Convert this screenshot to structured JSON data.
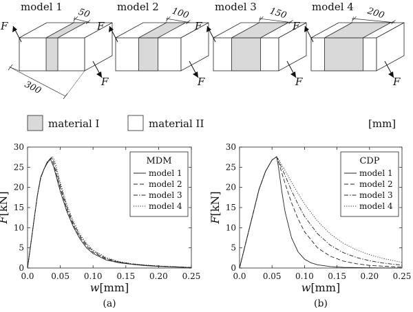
{
  "models": [
    {
      "label": "model 1",
      "dim": "50",
      "length": "300"
    },
    {
      "label": "model 2",
      "dim": "100"
    },
    {
      "label": "model 3",
      "dim": "150"
    },
    {
      "label": "model 4",
      "dim": "200"
    }
  ],
  "force_label": "F",
  "legend_materials": [
    {
      "label": "material I",
      "fill": "#d9d9d9"
    },
    {
      "label": "material II",
      "fill": "#ffffff"
    }
  ],
  "unit_label": "[mm]",
  "chart_data": [
    {
      "type": "line",
      "panel_label": "(a)",
      "legend_title": "MDM",
      "xlabel_var": "w",
      "xlabel_unit": "[mm]",
      "ylabel_var": "F",
      "ylabel_unit": "[kN]",
      "xlim": [
        0,
        0.25
      ],
      "ylim": [
        0,
        30
      ],
      "xticks": [
        "0.0",
        "0.05",
        "0.10",
        "0.15",
        "0.20",
        "0.25"
      ],
      "yticks": [
        "0",
        "5",
        "10",
        "15",
        "20",
        "25",
        "30"
      ],
      "legend_position": "top-right",
      "series": [
        {
          "name": "model 1",
          "dash": "solid",
          "x": [
            0,
            0.005,
            0.01,
            0.015,
            0.02,
            0.025,
            0.03,
            0.035,
            0.04,
            0.05,
            0.06,
            0.07,
            0.08,
            0.09,
            0.1,
            0.12,
            0.14,
            0.16,
            0.18,
            0.2,
            0.25
          ],
          "y": [
            0,
            6,
            12,
            18,
            22.5,
            24.5,
            26,
            27,
            25,
            19,
            14,
            10.2,
            7.2,
            5.0,
            3.6,
            2.0,
            1.3,
            0.9,
            0.6,
            0.4,
            0.1
          ]
        },
        {
          "name": "model 2",
          "dash": "dashed",
          "x": [
            0,
            0.005,
            0.01,
            0.015,
            0.02,
            0.025,
            0.03,
            0.036,
            0.04,
            0.05,
            0.06,
            0.07,
            0.08,
            0.09,
            0.1,
            0.12,
            0.14,
            0.16,
            0.18,
            0.2,
            0.25
          ],
          "y": [
            0,
            6,
            12,
            18,
            22.3,
            24.5,
            26.2,
            27.3,
            25.6,
            19.8,
            14.6,
            10.6,
            7.6,
            5.4,
            3.9,
            2.2,
            1.4,
            0.95,
            0.65,
            0.45,
            0.12
          ]
        },
        {
          "name": "model 3",
          "dash": "dashdot",
          "x": [
            0,
            0.005,
            0.01,
            0.015,
            0.02,
            0.025,
            0.03,
            0.037,
            0.041,
            0.05,
            0.06,
            0.07,
            0.08,
            0.09,
            0.1,
            0.12,
            0.14,
            0.16,
            0.18,
            0.2,
            0.25
          ],
          "y": [
            0,
            6,
            12,
            18,
            22.2,
            24.5,
            26.3,
            27.5,
            26,
            20.5,
            15.2,
            11.1,
            8.0,
            5.8,
            4.2,
            2.4,
            1.5,
            1.0,
            0.7,
            0.5,
            0.13
          ]
        },
        {
          "name": "model 4",
          "dash": "dotted",
          "x": [
            0,
            0.005,
            0.01,
            0.015,
            0.02,
            0.025,
            0.03,
            0.038,
            0.042,
            0.05,
            0.06,
            0.07,
            0.08,
            0.09,
            0.1,
            0.12,
            0.14,
            0.16,
            0.18,
            0.2,
            0.25
          ],
          "y": [
            0,
            6,
            12,
            18,
            22.1,
            24.5,
            26.4,
            27.7,
            26.4,
            21.2,
            15.8,
            11.6,
            8.4,
            6.1,
            4.5,
            2.6,
            1.6,
            1.05,
            0.75,
            0.5,
            0.14
          ]
        }
      ]
    },
    {
      "type": "line",
      "panel_label": "(b)",
      "legend_title": "CDP",
      "xlabel_var": "w",
      "xlabel_unit": "[mm]",
      "ylabel_var": "F",
      "ylabel_unit": "[kN]",
      "xlim": [
        0,
        0.25
      ],
      "ylim": [
        0,
        30
      ],
      "xticks": [
        "0.0",
        "0.05",
        "0.10",
        "0.15",
        "0.20",
        "0.25"
      ],
      "yticks": [
        "0",
        "5",
        "10",
        "15",
        "20",
        "25",
        "30"
      ],
      "legend_position": "top-right",
      "series": [
        {
          "name": "model 1",
          "dash": "solid",
          "x": [
            0,
            0.01,
            0.02,
            0.03,
            0.04,
            0.05,
            0.057,
            0.06,
            0.065,
            0.07,
            0.08,
            0.09,
            0.1,
            0.11,
            0.12,
            0.14,
            0.16,
            0.2,
            0.25
          ],
          "y": [
            0,
            6.5,
            13,
            19.5,
            24,
            26.8,
            27.6,
            25,
            19,
            14,
            7.5,
            4,
            2.2,
            1.3,
            0.8,
            0.35,
            0.15,
            0.05,
            0
          ]
        },
        {
          "name": "model 2",
          "dash": "dashed",
          "x": [
            0,
            0.01,
            0.02,
            0.03,
            0.04,
            0.05,
            0.057,
            0.06,
            0.07,
            0.08,
            0.09,
            0.1,
            0.12,
            0.14,
            0.16,
            0.18,
            0.2,
            0.25
          ],
          "y": [
            0,
            6.5,
            13,
            19.5,
            24,
            26.8,
            27.6,
            26.3,
            21,
            16.2,
            12.2,
            9,
            5,
            2.9,
            1.7,
            1.05,
            0.65,
            0.2
          ]
        },
        {
          "name": "model 3",
          "dash": "dashdot",
          "x": [
            0,
            0.01,
            0.02,
            0.03,
            0.04,
            0.05,
            0.057,
            0.06,
            0.07,
            0.08,
            0.09,
            0.1,
            0.12,
            0.14,
            0.16,
            0.18,
            0.2,
            0.22,
            0.25
          ],
          "y": [
            0,
            6.5,
            13,
            19.5,
            24,
            26.8,
            27.6,
            26.7,
            23,
            19.2,
            15.8,
            12.8,
            8.5,
            5.6,
            3.8,
            2.6,
            1.8,
            1.25,
            0.7
          ]
        },
        {
          "name": "model 4",
          "dash": "dotted",
          "x": [
            0,
            0.01,
            0.02,
            0.03,
            0.04,
            0.05,
            0.057,
            0.06,
            0.07,
            0.08,
            0.09,
            0.1,
            0.12,
            0.14,
            0.16,
            0.18,
            0.2,
            0.22,
            0.25
          ],
          "y": [
            0,
            6.5,
            13,
            19.5,
            24,
            26.8,
            27.6,
            27,
            24.2,
            21.3,
            18.5,
            15.9,
            11.6,
            8.4,
            6.1,
            4.5,
            3.3,
            2.4,
            1.4
          ]
        }
      ]
    }
  ]
}
